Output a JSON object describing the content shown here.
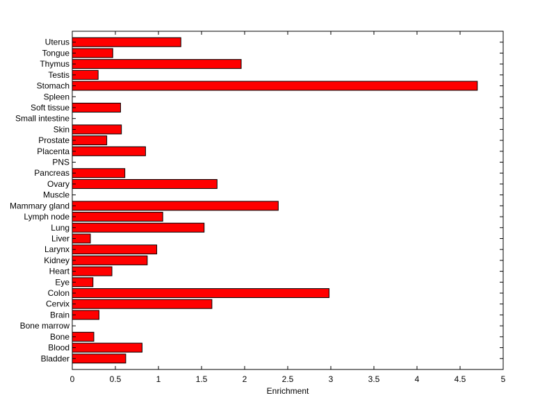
{
  "chart_data": {
    "type": "bar",
    "orientation": "horizontal",
    "title": "",
    "xlabel": "Enrichment",
    "ylabel": "",
    "xlim": [
      0,
      5
    ],
    "xticks": [
      "0",
      "0.5",
      "1",
      "1.5",
      "2",
      "2.5",
      "3",
      "3.5",
      "4",
      "4.5",
      "5"
    ],
    "grid": false,
    "bar_color": "#ff0000",
    "categories": [
      "Bladder",
      "Blood",
      "Bone",
      "Bone marrow",
      "Brain",
      "Cervix",
      "Colon",
      "Eye",
      "Heart",
      "Kidney",
      "Larynx",
      "Liver",
      "Lung",
      "Lymph node",
      "Mammary gland",
      "Muscle",
      "Ovary",
      "Pancreas",
      "PNS",
      "Placenta",
      "Prostate",
      "Skin",
      "Small intestine",
      "Soft tissue",
      "Spleen",
      "Stomach",
      "Testis",
      "Thymus",
      "Tongue",
      "Uterus"
    ],
    "values": [
      0.62,
      0.81,
      0.25,
      0,
      0.31,
      1.62,
      2.98,
      0.24,
      0.46,
      0.87,
      0.98,
      0.21,
      1.53,
      1.05,
      2.39,
      0,
      1.68,
      0.61,
      0,
      0.85,
      0.4,
      0.57,
      0,
      0.56,
      0,
      4.7,
      0.3,
      1.96,
      0.47,
      1.26
    ]
  }
}
